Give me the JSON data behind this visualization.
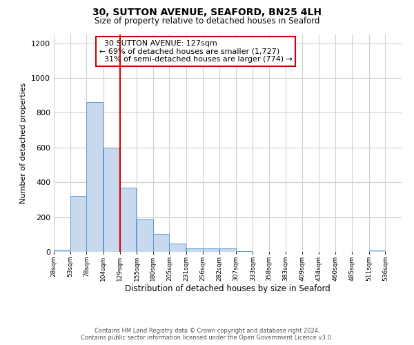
{
  "title": "30, SUTTON AVENUE, SEAFORD, BN25 4LH",
  "subtitle": "Size of property relative to detached houses in Seaford",
  "xlabel": "Distribution of detached houses by size in Seaford",
  "ylabel": "Number of detached properties",
  "bar_left_edges": [
    28,
    53,
    78,
    104,
    129,
    155,
    180,
    205,
    231,
    256,
    282,
    307,
    333,
    358,
    383,
    409,
    434,
    460,
    485,
    511
  ],
  "bar_heights": [
    10,
    320,
    860,
    600,
    370,
    185,
    105,
    47,
    20,
    20,
    18,
    5,
    0,
    0,
    0,
    0,
    0,
    0,
    0,
    8
  ],
  "bin_width": 25,
  "bar_color": "#c9d9ed",
  "bar_edge_color": "#5b9bd5",
  "tick_labels": [
    "28sqm",
    "53sqm",
    "78sqm",
    "104sqm",
    "129sqm",
    "155sqm",
    "180sqm",
    "205sqm",
    "231sqm",
    "256sqm",
    "282sqm",
    "307sqm",
    "333sqm",
    "358sqm",
    "383sqm",
    "409sqm",
    "434sqm",
    "460sqm",
    "485sqm",
    "511sqm",
    "536sqm"
  ],
  "ylim": [
    0,
    1250
  ],
  "yticks": [
    0,
    200,
    400,
    600,
    800,
    1000,
    1200
  ],
  "vline_x": 129,
  "vline_color": "#cc0000",
  "annotation_box_text": "  30 SUTTON AVENUE: 127sqm\n← 69% of detached houses are smaller (1,727)\n  31% of semi-detached houses are larger (774) →",
  "footer_line1": "Contains HM Land Registry data © Crown copyright and database right 2024.",
  "footer_line2": "Contains public sector information licensed under the Open Government Licence v3.0.",
  "background_color": "#ffffff",
  "grid_color": "#d0d0d0"
}
